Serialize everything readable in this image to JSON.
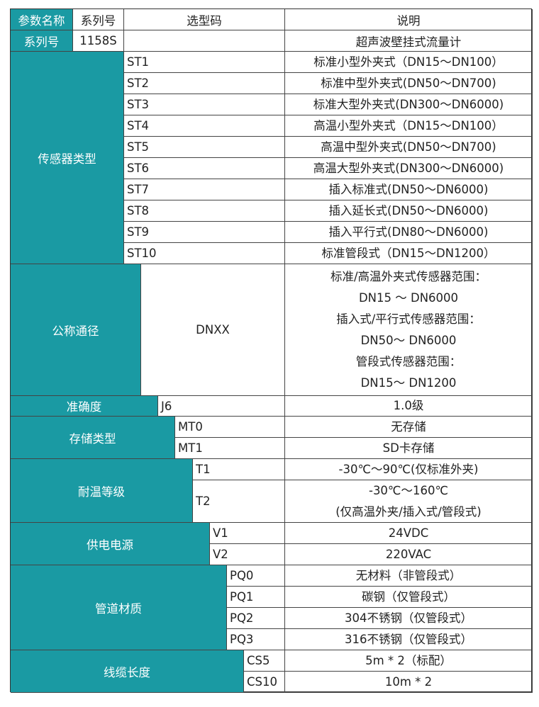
{
  "header": [
    "参数名称",
    "系列号",
    "选型码",
    "说明"
  ],
  "series": {
    "label": "系列号",
    "code": "1158S",
    "desc": "超声波壁挂式流量计"
  },
  "accent_color": "#1a9aa3",
  "groups": [
    {
      "label": "传感器类型",
      "options": [
        {
          "code": "ST1",
          "desc": [
            "标准小型外夹式（DN15～DN100）"
          ]
        },
        {
          "code": "ST2",
          "desc": [
            "标准中型外夹式(DN50～DN700)"
          ]
        },
        {
          "code": "ST3",
          "desc": [
            "标准大型外夹式(DN300～DN6000)"
          ]
        },
        {
          "code": "ST4",
          "desc": [
            "高温小型外夹式（DN15～DN100）"
          ]
        },
        {
          "code": "ST5",
          "desc": [
            "高温中型外夹式(DN50～DN700)"
          ]
        },
        {
          "code": "ST6",
          "desc": [
            "高温大型外夹式(DN300～DN6000)"
          ]
        },
        {
          "code": "ST7",
          "desc": [
            "插入标准式(DN50～DN6000)"
          ]
        },
        {
          "code": "ST8",
          "desc": [
            "插入延长式(DN50～DN6000)"
          ]
        },
        {
          "code": "ST9",
          "desc": [
            "插入平行式(DN80～DN6000)"
          ]
        },
        {
          "code": "ST10",
          "desc": [
            "标准管段式（DN15～DN1200）"
          ]
        }
      ]
    },
    {
      "label": "公称通径",
      "options": [
        {
          "code": "DNXX",
          "desc": [
            "标准/高温外夹式传感器范围：",
            "DN15 ～ DN6000",
            "插入式/平行式传感器范围：",
            "DN50～ DN6000",
            "管段式传感器范围：",
            "DN15～ DN1200"
          ]
        }
      ]
    },
    {
      "label": "准确度",
      "options": [
        {
          "code": "J6",
          "desc": [
            "1.0级"
          ]
        }
      ]
    },
    {
      "label": "存储类型",
      "options": [
        {
          "code": "MT0",
          "desc": [
            "无存储"
          ]
        },
        {
          "code": "MT1",
          "desc": [
            "SD卡存储"
          ]
        }
      ]
    },
    {
      "label": "耐温等级",
      "options": [
        {
          "code": "T1",
          "desc": [
            "-30℃～90℃(仅标准外夹)"
          ]
        },
        {
          "code": "T2",
          "desc": [
            "-30℃～160℃",
            "(仅高温外夹/插入式/管段式)"
          ]
        }
      ]
    },
    {
      "label": "供电电源",
      "options": [
        {
          "code": "V1",
          "desc": [
            "24VDC"
          ]
        },
        {
          "code": "V2",
          "desc": [
            "220VAC"
          ]
        }
      ]
    },
    {
      "label": "管道材质",
      "options": [
        {
          "code": "PQ0",
          "desc": [
            "无材料（非管段式）"
          ]
        },
        {
          "code": "PQ1",
          "desc": [
            "碳钢（仅管段式）"
          ]
        },
        {
          "code": "PQ2",
          "desc": [
            "304不锈钢（仅管段式）"
          ]
        },
        {
          "code": "PQ3",
          "desc": [
            "316不锈钢（仅管段式）"
          ]
        }
      ]
    },
    {
      "label": "线缆长度",
      "options": [
        {
          "code": "CS5",
          "desc": [
            "5m * 2（标配）"
          ]
        },
        {
          "code": "CS10",
          "desc": [
            "10m * 2"
          ]
        }
      ]
    }
  ]
}
